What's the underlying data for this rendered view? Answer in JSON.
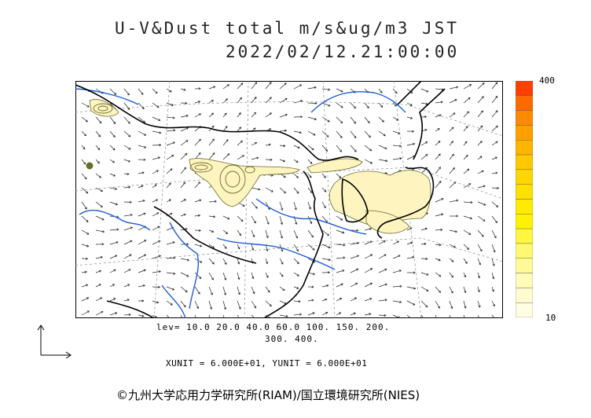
{
  "header": {
    "title": "U-V&Dust total m/s&ug/m3 JST",
    "datetime": "2022/02/12.21:00:00"
  },
  "scale": {
    "max_label": "400",
    "min_label": "10",
    "colors": [
      "#ff4000",
      "#ff6a00",
      "#ff8a00",
      "#ffa000",
      "#ffb400",
      "#ffc800",
      "#ffd600",
      "#ffe000",
      "#ffea00",
      "#fff200",
      "#fff640",
      "#fff870",
      "#fffa98",
      "#fffbb8",
      "#fffcd0",
      "#fffde2"
    ]
  },
  "legend": {
    "levels_line1": "lev= 10.0 20.0 40.0 60.0 100. 150. 200.",
    "levels_line2": "300. 400.",
    "units": "XUNIT = 6.000E+01, YUNIT = 6.000E+01"
  },
  "footer": {
    "credit": "©九州大学応用力学研究所(RIAM)/国立環境研究所(NIES)"
  },
  "colors": {
    "dust_fill": "#fdf4c0",
    "dust_contour": "#6b6b2a",
    "river": "#1f5fd6",
    "coast": "#000000"
  }
}
